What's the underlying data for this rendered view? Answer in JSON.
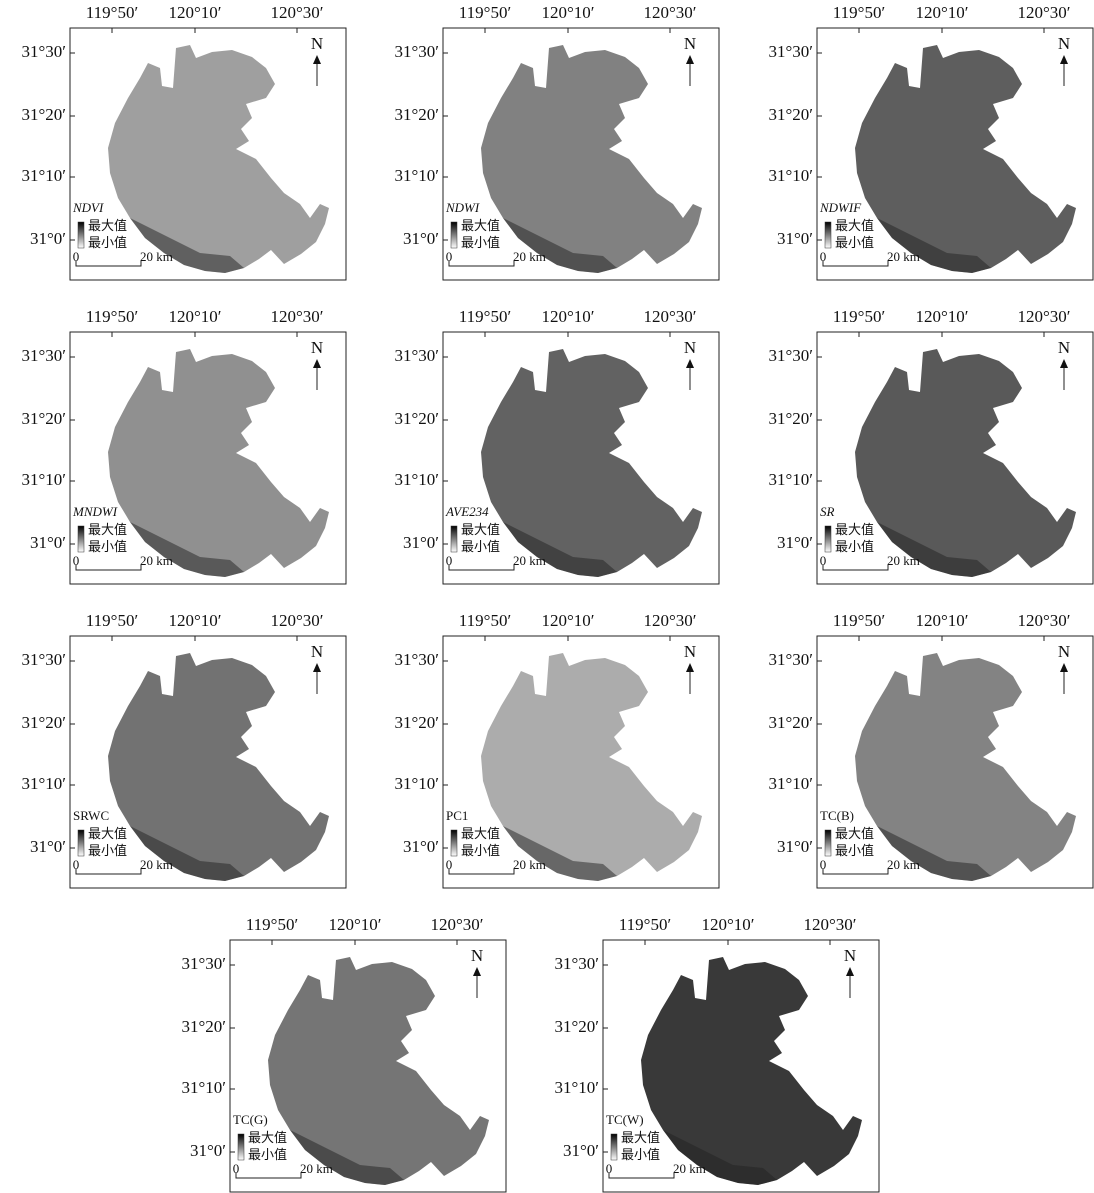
{
  "lon_ticks": [
    "119°50′",
    "120°10′",
    "120°30′"
  ],
  "lat_ticks": [
    "31°30′",
    "31°20′",
    "31°10′",
    "31°0′"
  ],
  "north": "N",
  "legend": {
    "max": "最大值",
    "min": "最小值"
  },
  "scale": {
    "start": "0",
    "end": "20 km"
  },
  "panels": [
    {
      "label": "NDVI"
    },
    {
      "label": "NDWI"
    },
    {
      "label": "NDWIF"
    },
    {
      "label": "MNDWI"
    },
    {
      "label": "AVE234"
    },
    {
      "label": "SR"
    },
    {
      "label": "SRWC"
    },
    {
      "label": "PC1"
    },
    {
      "label": "TC(B)"
    },
    {
      "label": "TC(G)"
    },
    {
      "label": "TC(W)"
    }
  ]
}
